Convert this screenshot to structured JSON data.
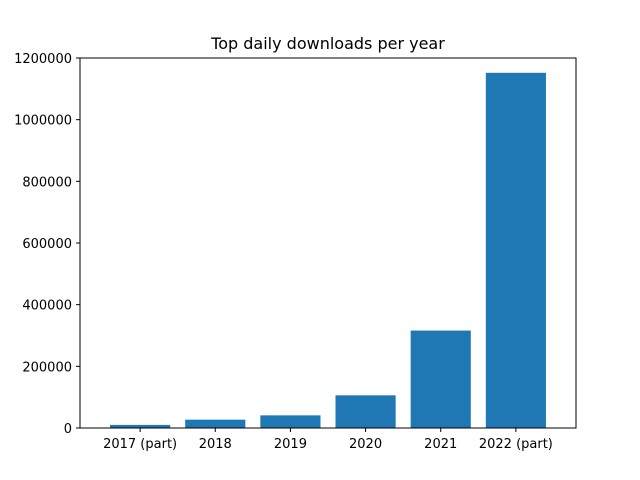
{
  "chart_data": {
    "type": "bar",
    "title": "Top daily downloads per year",
    "xlabel": "",
    "ylabel": "",
    "categories": [
      "2017 (part)",
      "2018",
      "2019",
      "2020",
      "2021",
      "2022 (part)"
    ],
    "values": [
      10000,
      27000,
      41000,
      106000,
      316000,
      1152000
    ],
    "ylim": [
      0,
      1200000
    ],
    "yticks": [
      0,
      200000,
      400000,
      600000,
      800000,
      1000000,
      1200000
    ],
    "ytick_labels": [
      "0",
      "200000",
      "400000",
      "600000",
      "800000",
      "1000000",
      "1200000"
    ],
    "grid": false,
    "bar_color": "#1f77b4"
  }
}
